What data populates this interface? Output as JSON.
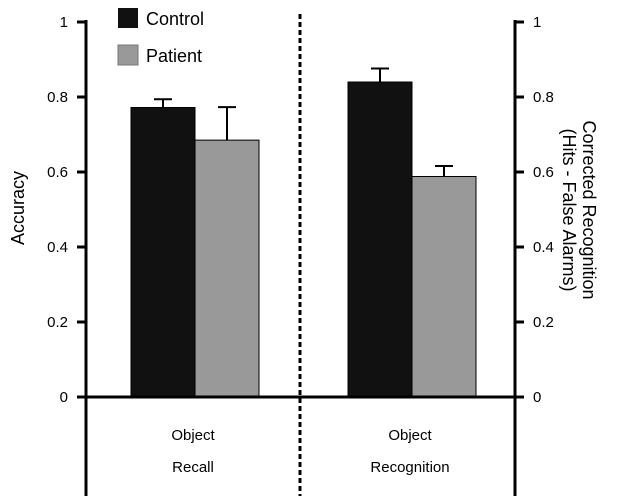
{
  "chart_data": {
    "type": "bar",
    "categories": [
      {
        "line1": "Object",
        "line2": "Recall"
      },
      {
        "line1": "Object",
        "line2": "Recognition"
      }
    ],
    "series": [
      {
        "name": "Control",
        "color": "#111111",
        "values": [
          0.772,
          0.84
        ],
        "errors": [
          0.022,
          0.036
        ]
      },
      {
        "name": "Patient",
        "color": "#999999",
        "values": [
          0.685,
          0.588
        ],
        "errors": [
          0.088,
          0.028
        ]
      }
    ],
    "ylabel_left": "Accuracy",
    "ylabel_right": {
      "line1": "Corrected Recognition",
      "line2": "(Hits - False Alarms)"
    },
    "ylim": [
      0,
      1
    ],
    "yticks": [
      "0",
      "0.2",
      "0.4",
      "0.6",
      "0.8",
      "1"
    ],
    "legend_position": "top-left",
    "grid": false,
    "divider": "dashed vertical line between categories"
  }
}
